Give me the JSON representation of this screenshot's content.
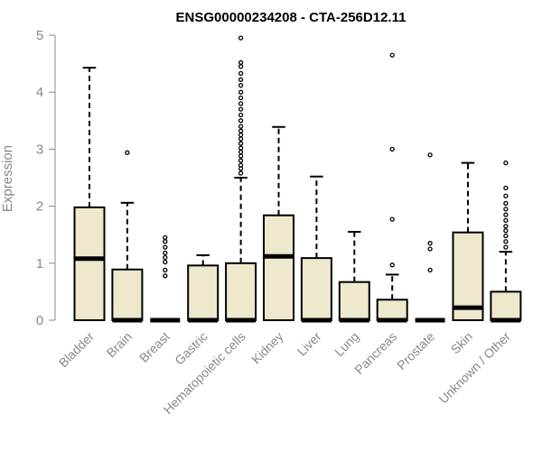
{
  "chart_data": {
    "type": "box",
    "title": "ENSG00000234208 - CTA-256D12.11",
    "xlabel": "",
    "ylabel": "Expression",
    "ylim": [
      0,
      5
    ],
    "yticks": [
      0,
      1,
      2,
      3,
      4,
      5
    ],
    "grid": false,
    "box_color": "#EEE8CD",
    "categories": [
      "Bladder",
      "Brain",
      "Breast",
      "Gastric",
      "Hematopoietic cells",
      "Kidney",
      "Liver",
      "Lung",
      "Pancreas",
      "Prostate",
      "Skin",
      "Unknown / Other"
    ],
    "boxes": [
      {
        "category": "Bladder",
        "min": 0,
        "q1": 0,
        "median": 1.08,
        "q3": 1.98,
        "max": 4.43,
        "outliers": []
      },
      {
        "category": "Brain",
        "min": 0,
        "q1": 0,
        "median": 0,
        "q3": 0.89,
        "max": 2.06,
        "outliers": [
          2.94
        ]
      },
      {
        "category": "Breast",
        "min": 0,
        "q1": 0,
        "median": 0,
        "q3": 0,
        "max": 0,
        "outliers": [
          0.78,
          0.88,
          1.02,
          1.1,
          1.18,
          1.28,
          1.38,
          1.45
        ]
      },
      {
        "category": "Gastric",
        "min": 0,
        "q1": 0,
        "median": 0,
        "q3": 0.96,
        "max": 1.14,
        "outliers": []
      },
      {
        "category": "Hematopoietic cells",
        "min": 0,
        "q1": 0,
        "median": 0,
        "q3": 1.0,
        "max": 2.5,
        "outliers": [
          2.58,
          2.66,
          2.72,
          2.8,
          2.88,
          2.95,
          3.02,
          3.1,
          3.18,
          3.25,
          3.32,
          3.4,
          3.5,
          3.6,
          3.7,
          3.8,
          3.9,
          4.0,
          4.12,
          4.22,
          4.33,
          4.45,
          4.52,
          4.95
        ]
      },
      {
        "category": "Kidney",
        "min": 0,
        "q1": 0,
        "median": 1.12,
        "q3": 1.84,
        "max": 3.39,
        "outliers": []
      },
      {
        "category": "Liver",
        "min": 0,
        "q1": 0,
        "median": 0,
        "q3": 1.09,
        "max": 2.52,
        "outliers": []
      },
      {
        "category": "Lung",
        "min": 0,
        "q1": 0,
        "median": 0,
        "q3": 0.67,
        "max": 1.55,
        "outliers": []
      },
      {
        "category": "Pancreas",
        "min": 0,
        "q1": 0,
        "median": 0,
        "q3": 0.36,
        "max": 0.8,
        "outliers": [
          0.97,
          1.77,
          3.0,
          4.65
        ]
      },
      {
        "category": "Prostate",
        "min": 0,
        "q1": 0,
        "median": 0,
        "q3": 0,
        "max": 0,
        "outliers": [
          0.88,
          1.25,
          1.35,
          2.9
        ]
      },
      {
        "category": "Skin",
        "min": 0,
        "q1": 0,
        "median": 0.22,
        "q3": 1.54,
        "max": 2.76,
        "outliers": []
      },
      {
        "category": "Unknown / Other",
        "min": 0,
        "q1": 0,
        "median": 0,
        "q3": 0.5,
        "max": 1.2,
        "outliers": [
          1.28,
          1.38,
          1.48,
          1.57,
          1.65,
          1.75,
          1.85,
          1.95,
          2.05,
          2.18,
          2.32,
          2.76
        ]
      }
    ]
  }
}
